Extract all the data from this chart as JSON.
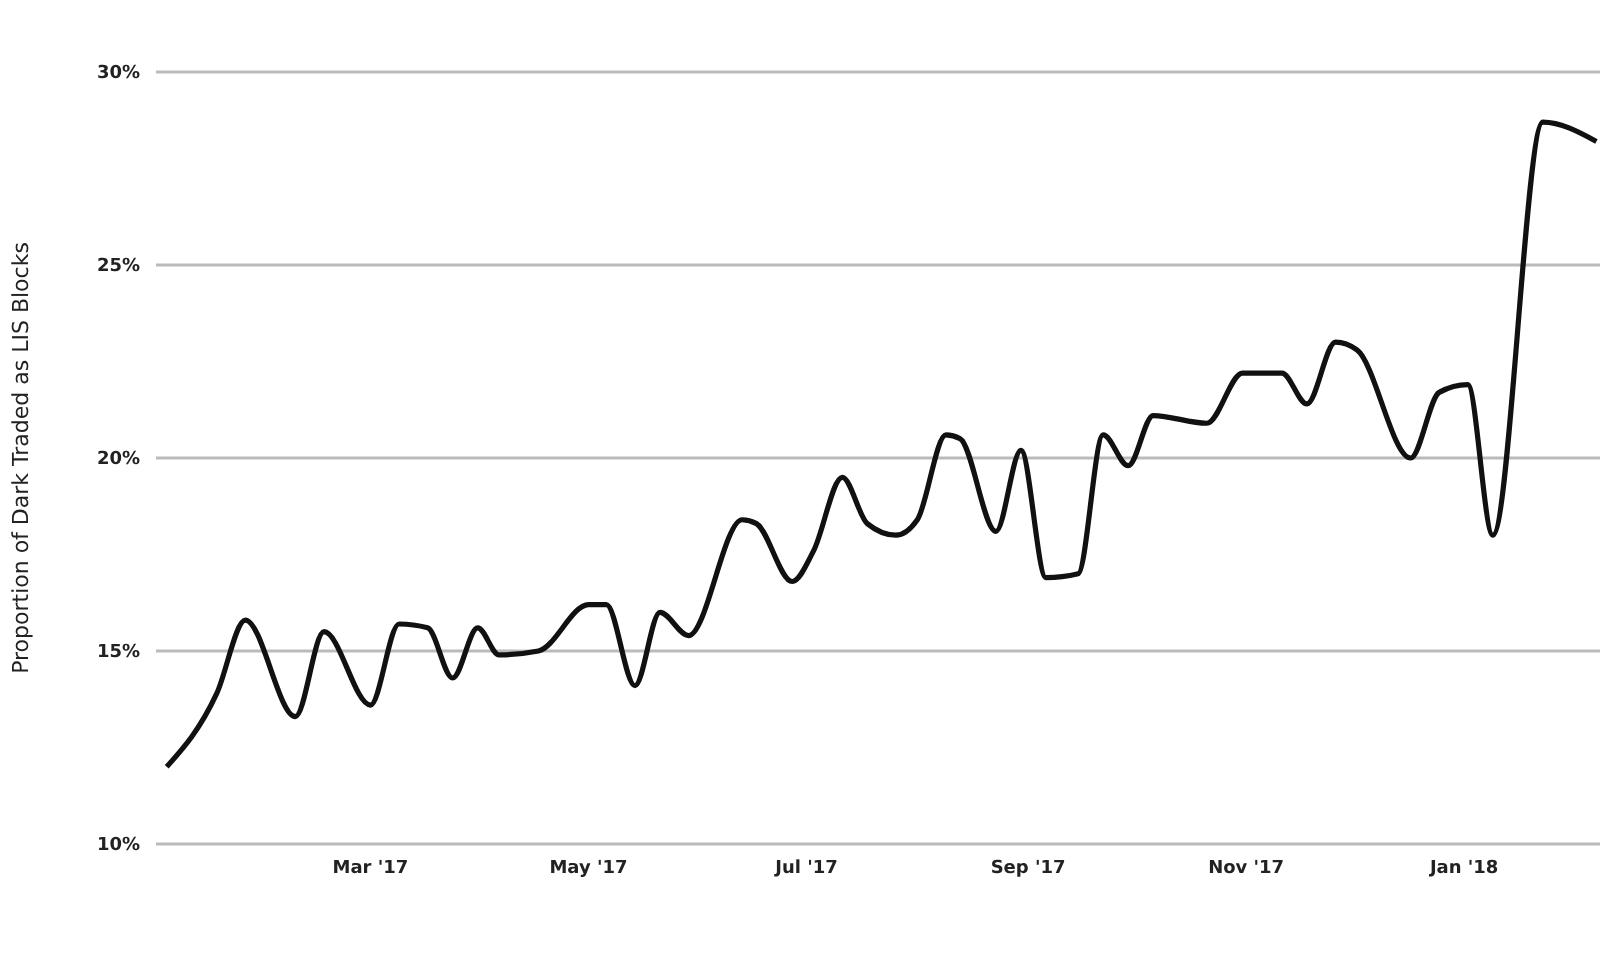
{
  "chart_data": {
    "type": "line",
    "ylabel": "Proportion of Dark Traded as LIS Blocks",
    "x": [
      "2017-01-03",
      "2017-01-17",
      "2017-01-25",
      "2017-02-08",
      "2017-02-16",
      "2017-03-01",
      "2017-03-09",
      "2017-03-17",
      "2017-03-24",
      "2017-03-31",
      "2017-04-06",
      "2017-04-17",
      "2017-05-01",
      "2017-05-06",
      "2017-05-14",
      "2017-05-21",
      "2017-05-29",
      "2017-06-13",
      "2017-06-17",
      "2017-06-27",
      "2017-07-03",
      "2017-07-11",
      "2017-07-18",
      "2017-07-26",
      "2017-08-01",
      "2017-08-09",
      "2017-08-13",
      "2017-08-23",
      "2017-08-30",
      "2017-09-06",
      "2017-09-15",
      "2017-09-22",
      "2017-09-29",
      "2017-10-06",
      "2017-10-21",
      "2017-10-31",
      "2017-11-11",
      "2017-11-18",
      "2017-11-26",
      "2017-12-02",
      "2017-12-17",
      "2017-12-25",
      "2018-01-02",
      "2018-01-09",
      "2018-01-23",
      "2018-02-07"
    ],
    "series": [
      {
        "color": "#111111",
        "values": [
          12.0,
          13.9,
          15.8,
          13.3,
          15.5,
          13.6,
          15.7,
          15.6,
          14.3,
          15.6,
          14.9,
          15.0,
          16.2,
          16.2,
          14.1,
          16.0,
          15.4,
          18.4,
          18.3,
          16.8,
          17.6,
          19.5,
          18.3,
          18.0,
          18.4,
          20.6,
          20.5,
          18.1,
          20.2,
          16.9,
          17.0,
          20.6,
          19.8,
          21.1,
          20.9,
          22.2,
          22.2,
          21.4,
          23.0,
          22.8,
          20.0,
          21.7,
          21.9,
          18.0,
          28.7,
          28.2
        ]
      }
    ],
    "xlim": [
      "2016-12-31",
      "2018-02-08"
    ],
    "xticks": [
      {
        "value": "2017-03-01",
        "label": "Mar '17"
      },
      {
        "value": "2017-05-01",
        "label": "May '17"
      },
      {
        "value": "2017-07-01",
        "label": "Jul '17"
      },
      {
        "value": "2017-09-01",
        "label": "Sep '17"
      },
      {
        "value": "2017-11-01",
        "label": "Nov '17"
      },
      {
        "value": "2018-01-01",
        "label": "Jan '18"
      }
    ],
    "ylim": [
      10,
      30
    ],
    "yticks": [
      {
        "value": 10,
        "label": "10%"
      },
      {
        "value": 15,
        "label": "15%"
      },
      {
        "value": 20,
        "label": "20%"
      },
      {
        "value": 25,
        "label": "25%"
      },
      {
        "value": 30,
        "label": "30%"
      }
    ],
    "grid": "y",
    "marker": "none",
    "line_style": "solid",
    "legend": false
  }
}
